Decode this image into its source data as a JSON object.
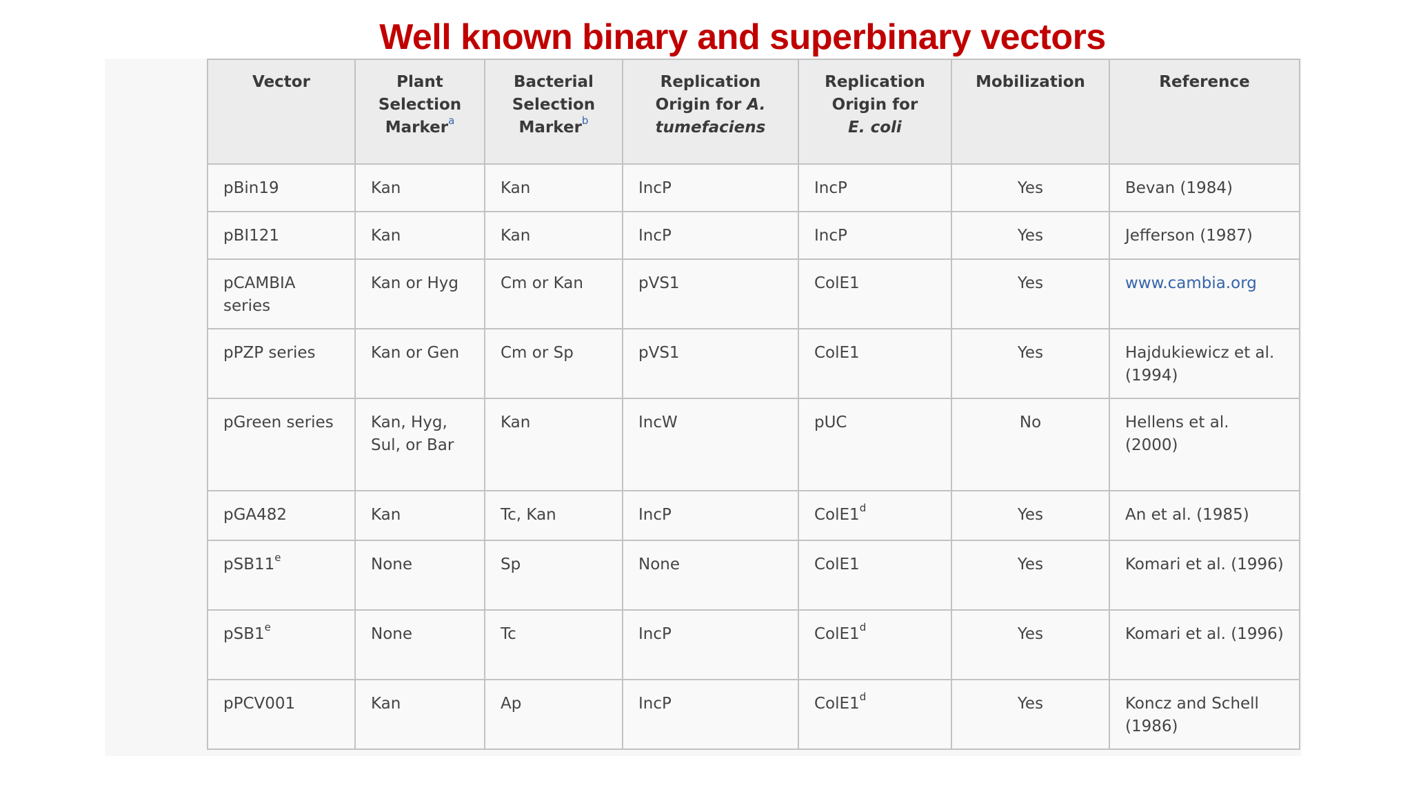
{
  "title": "Well known binary and superbinary vectors",
  "colors": {
    "title": "#c00000",
    "link": "#3565a8",
    "header_bg": "#ececec",
    "cell_bg": "#f9f9f9",
    "border": "#c2c2c2"
  },
  "table": {
    "headers": {
      "vector": "Vector",
      "plant": {
        "line1": "Plant",
        "line2": "Selection",
        "line3": "Marker",
        "sup": "a"
      },
      "bacterial": {
        "line1": "Bacterial",
        "line2": "Selection",
        "line3": "Marker",
        "sup": "b"
      },
      "rep_agro": {
        "line1": "Replication",
        "line2a": "Origin for ",
        "line2b": "A.",
        "line3": "tumefaciens"
      },
      "rep_ecoli": {
        "line1": "Replication",
        "line2": "Origin for",
        "line3": "E. coli"
      },
      "mobilization": "Mobilization",
      "reference": "Reference"
    },
    "rows": [
      {
        "vector": "pBin19",
        "vector_sup": "",
        "plant": "Kan",
        "bacterial": "Kan",
        "rep_agro": "IncP",
        "rep_ecoli": "IncP",
        "rep_ecoli_sup": "",
        "mobilization": "Yes",
        "reference": "Bevan (1984)"
      },
      {
        "vector": "pBI121",
        "vector_sup": "",
        "plant": "Kan",
        "bacterial": "Kan",
        "rep_agro": "IncP",
        "rep_ecoli": "IncP",
        "rep_ecoli_sup": "",
        "mobilization": "Yes",
        "reference": "Jefferson (1987)"
      },
      {
        "vector": "pCAMBIA series",
        "vector_sup": "",
        "plant": "Kan or Hyg",
        "bacterial": "Cm or Kan",
        "rep_agro": "pVS1",
        "rep_ecoli": "ColE1",
        "rep_ecoli_sup": "",
        "mobilization": "Yes",
        "reference": "www.cambia.org"
      },
      {
        "vector": "pPZP series",
        "vector_sup": "",
        "plant": "Kan or Gen",
        "bacterial": "Cm or Sp",
        "rep_agro": "pVS1",
        "rep_ecoli": "ColE1",
        "rep_ecoli_sup": "",
        "mobilization": "Yes",
        "reference": "Hajdukiewicz et al. (1994)"
      },
      {
        "vector": "pGreen series",
        "vector_sup": "",
        "plant": "Kan, Hyg, Sul, or Bar",
        "bacterial": "Kan",
        "rep_agro": "IncW",
        "rep_ecoli": "pUC",
        "rep_ecoli_sup": "",
        "mobilization": "No",
        "reference": "Hellens et al. (2000)"
      },
      {
        "vector": "pGA482",
        "vector_sup": "",
        "plant": "Kan",
        "bacterial": "Tc, Kan",
        "rep_agro": "IncP",
        "rep_ecoli": "ColE1",
        "rep_ecoli_sup": "d",
        "mobilization": "Yes",
        "reference": "An et al. (1985)"
      },
      {
        "vector": "pSB11",
        "vector_sup": "e",
        "plant": "None",
        "bacterial": "Sp",
        "rep_agro": "None",
        "rep_ecoli": "ColE1",
        "rep_ecoli_sup": "",
        "mobilization": "Yes",
        "reference": "Komari et al. (1996)"
      },
      {
        "vector": "pSB1",
        "vector_sup": "e",
        "plant": "None",
        "bacterial": "Tc",
        "rep_agro": "IncP",
        "rep_ecoli": "ColE1",
        "rep_ecoli_sup": "d",
        "mobilization": "Yes",
        "reference": "Komari et al. (1996)"
      },
      {
        "vector": "pPCV001",
        "vector_sup": "",
        "plant": "Kan",
        "bacterial": "Ap",
        "rep_agro": "IncP",
        "rep_ecoli": "ColE1",
        "rep_ecoli_sup": "d",
        "mobilization": "Yes",
        "reference": "Koncz and Schell (1986)"
      }
    ]
  }
}
